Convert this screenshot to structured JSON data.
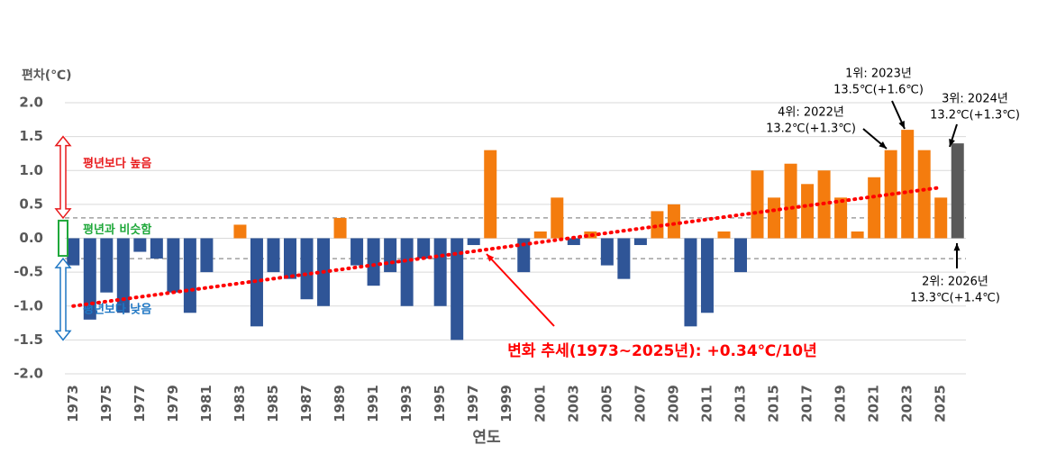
{
  "chart_data": {
    "type": "bar",
    "y_label": "편차(℃)",
    "x_label": "연도",
    "categories": [
      "1973",
      null,
      "1975",
      null,
      "1977",
      null,
      "1979",
      null,
      "1981",
      null,
      "1983",
      null,
      "1985",
      null,
      "1987",
      null,
      "1989",
      null,
      "1991",
      null,
      "1993",
      null,
      "1995",
      null,
      "1997",
      null,
      "1999",
      null,
      "2001",
      null,
      "2003",
      null,
      "2005",
      null,
      "2007",
      null,
      "2009",
      null,
      "2011",
      null,
      "2013",
      null,
      "2015",
      null,
      "2017",
      null,
      "2019",
      null,
      "2021",
      null,
      "2023",
      null,
      "2025",
      null
    ],
    "values": [
      -0.4,
      -1.2,
      -0.8,
      -1.1,
      -0.2,
      -0.3,
      -0.8,
      -1.1,
      -0.5,
      0.0,
      0.2,
      -1.3,
      -0.5,
      -0.6,
      -0.9,
      -1.0,
      0.3,
      -0.4,
      -0.7,
      -0.5,
      -1.0,
      -0.3,
      -1.0,
      -1.5,
      -0.1,
      1.3,
      0.0,
      -0.5,
      0.1,
      0.6,
      -0.1,
      0.1,
      -0.4,
      -0.6,
      -0.1,
      0.4,
      0.5,
      -1.3,
      -1.1,
      0.1,
      -0.5,
      1.0,
      0.6,
      1.1,
      0.8,
      1.0,
      0.6,
      0.1,
      0.9,
      1.3,
      1.6,
      1.3,
      0.6,
      1.4
    ],
    "colors": [
      "#2f5597",
      "#2f5597",
      "#2f5597",
      "#2f5597",
      "#2f5597",
      "#2f5597",
      "#2f5597",
      "#2f5597",
      "#2f5597",
      "#2f5597",
      "#f47c0e",
      "#2f5597",
      "#2f5597",
      "#2f5597",
      "#2f5597",
      "#2f5597",
      "#f47c0e",
      "#2f5597",
      "#2f5597",
      "#2f5597",
      "#2f5597",
      "#2f5597",
      "#2f5597",
      "#2f5597",
      "#2f5597",
      "#f47c0e",
      "#2f5597",
      "#2f5597",
      "#f47c0e",
      "#f47c0e",
      "#2f5597",
      "#f47c0e",
      "#2f5597",
      "#2f5597",
      "#2f5597",
      "#f47c0e",
      "#f47c0e",
      "#2f5597",
      "#2f5597",
      "#f47c0e",
      "#2f5597",
      "#f47c0e",
      "#f47c0e",
      "#f47c0e",
      "#f47c0e",
      "#f47c0e",
      "#f47c0e",
      "#f47c0e",
      "#f47c0e",
      "#f47c0e",
      "#f47c0e",
      "#f47c0e",
      "#f47c0e",
      "#595959"
    ],
    "ylim": [
      -2,
      2
    ],
    "yticks": [
      {
        "value": -2,
        "label": "-2.0"
      },
      -1.5,
      {
        "value": -1,
        "label": "-1.0"
      },
      -0.5,
      {
        "value": 0,
        "label": "0.0"
      },
      0.5,
      {
        "value": 1,
        "label": "1.0"
      },
      1.5,
      {
        "value": 2,
        "label": "2.0"
      }
    ],
    "grid": true,
    "reference_lines": [
      0.3,
      -0.3
    ],
    "bands": [
      {
        "label": "평년보다 높음",
        "from": 1.5,
        "to": 0.3,
        "color": "#e8191b"
      },
      {
        "label": "평년과 비슷함",
        "from": 0.3,
        "to": -0.3,
        "color": "#1fa83a"
      },
      {
        "label": "평년보다 낮음",
        "from": -0.3,
        "to": -1.5,
        "color": "#1f77c4"
      }
    ],
    "trend": {
      "label": "변화 추세(1973~2025년): +0.34℃/10년",
      "from": 1973,
      "to": 2025,
      "values": [
        -1.0,
        0.75
      ],
      "color": "#ff0000"
    },
    "annotations": [
      [
        "1위: 2023년",
        "13.5℃(+1.6℃)"
      ],
      [
        "4위: 2022년",
        "13.2℃(+1.3℃)"
      ],
      [
        "3위: 2024년",
        "13.2℃(+1.3℃)"
      ],
      [
        "2위: 2026년",
        "13.3℃(+1.4℃)"
      ]
    ]
  }
}
